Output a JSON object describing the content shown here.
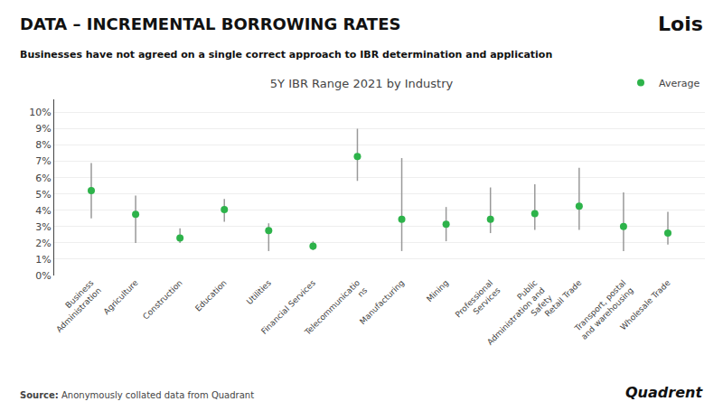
{
  "chart_data": {
    "type": "range",
    "title": "5Y IBR Range 2021 by Industry",
    "subtitle": "Businesses have not agreed on a single correct approach to IBR determination and application",
    "annotations": [
      "DATA – INCREMENTAL BORROWING RATES",
      "Lois",
      "Source: Anonymously collated data from Quadrant",
      "Quadrent"
    ],
    "categories": [
      "Business\nAdministration",
      "Agriculture",
      "Construction",
      "Education",
      "Utilities",
      "Financial Services",
      "Telecommunicatio\nns",
      "Manufacturing",
      "Mining",
      "Professional\nServices",
      "Public\nAdministration and\nSafety",
      "Retail Trade",
      "Transport, postal\nand warehousing",
      "Wholesale Trade"
    ],
    "series": [
      {
        "name": "Average",
        "color": "#2db34a",
        "marker": "circle",
        "values": [
          0.052,
          0.0375,
          0.023,
          0.0405,
          0.0275,
          0.018,
          0.073,
          0.0345,
          0.0315,
          0.0345,
          0.038,
          0.0425,
          0.03,
          0.026
        ],
        "low": [
          0.035,
          0.02,
          0.02,
          0.033,
          0.015,
          0.0155,
          0.058,
          0.015,
          0.021,
          0.026,
          0.028,
          0.028,
          0.015,
          0.019
        ],
        "high": [
          0.069,
          0.049,
          0.029,
          0.047,
          0.032,
          0.021,
          0.09,
          0.072,
          0.042,
          0.054,
          0.056,
          0.066,
          0.051,
          0.039
        ]
      }
    ],
    "color": "#999999",
    "ylim": [
      0,
      0.108
    ],
    "yticks": [
      {
        "value": 0.0,
        "label": "0%"
      },
      {
        "value": 0.01,
        "label": "1%"
      },
      {
        "value": 0.02,
        "label": "2%"
      },
      {
        "value": 0.03,
        "label": "3%"
      },
      {
        "value": 0.04,
        "label": "4%"
      },
      {
        "value": 0.05,
        "label": "5%"
      },
      {
        "value": 0.06,
        "label": "6%"
      },
      {
        "value": 0.07,
        "label": "7%"
      },
      {
        "value": 0.08,
        "label": "8%"
      },
      {
        "value": 0.09,
        "label": "9%"
      },
      {
        "value": 0.1,
        "label": "10%"
      }
    ],
    "grid": true,
    "legend": "upper right"
  }
}
